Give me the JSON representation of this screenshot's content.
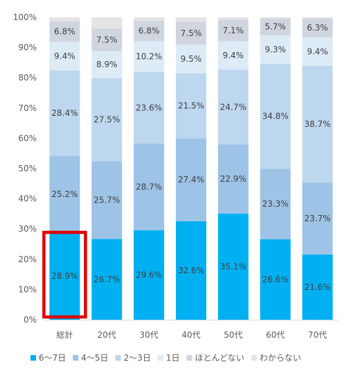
{
  "chart_data": {
    "type": "bar",
    "stacked": true,
    "percent_stacked": true,
    "categories": [
      "総計",
      "20代",
      "30代",
      "40代",
      "50代",
      "60代",
      "70代"
    ],
    "series": [
      {
        "name": "6〜7日",
        "color": "#00B0F0",
        "values": [
          28.9,
          26.7,
          29.6,
          32.6,
          35.1,
          26.6,
          21.6
        ],
        "labels": [
          "28.9%",
          "26.7%",
          "29.6%",
          "32.6%",
          "35.1%",
          "26.6%",
          "21.6%"
        ]
      },
      {
        "name": "4〜5日",
        "color": "#9DC3E6",
        "values": [
          25.2,
          25.7,
          28.7,
          27.4,
          22.9,
          23.3,
          23.7
        ],
        "labels": [
          "25.2%",
          "25.7%",
          "28.7%",
          "27.4%",
          "22.9%",
          "23.3%",
          "23.7%"
        ]
      },
      {
        "name": "2〜3日",
        "color": "#BDD7EE",
        "values": [
          28.4,
          27.5,
          23.6,
          21.5,
          24.7,
          34.8,
          38.7
        ],
        "labels": [
          "28.4%",
          "27.5%",
          "23.6%",
          "21.5%",
          "24.7%",
          "34.8%",
          "38.7%"
        ]
      },
      {
        "name": "1日",
        "color": "#DDEBF7",
        "values": [
          9.4,
          8.9,
          10.2,
          9.5,
          9.4,
          9.3,
          9.4
        ],
        "labels": [
          "9.4%",
          "8.9%",
          "10.2%",
          "9.5%",
          "9.4%",
          "9.3%",
          "9.4%"
        ]
      },
      {
        "name": "ほとんどない",
        "color": "#D0D6E0",
        "values": [
          6.8,
          7.5,
          6.8,
          7.5,
          7.1,
          5.7,
          6.3
        ],
        "labels": [
          "6.8%",
          "7.5%",
          "6.8%",
          "7.5%",
          "7.1%",
          "5.7%",
          "6.3%"
        ]
      },
      {
        "name": "わからない",
        "color": "#E4E4E4",
        "values": [
          1.3,
          3.7,
          1.1,
          1.5,
          0.8,
          0.3,
          0.3
        ],
        "labels": []
      }
    ],
    "yticks": [
      "0%",
      "10%",
      "20%",
      "30%",
      "40%",
      "50%",
      "60%",
      "70%",
      "80%",
      "90%",
      "100%"
    ],
    "ylim": [
      0,
      100
    ],
    "grid": false,
    "legend": "bottom",
    "highlight": {
      "category_index": 0,
      "color": "#E00000"
    }
  }
}
